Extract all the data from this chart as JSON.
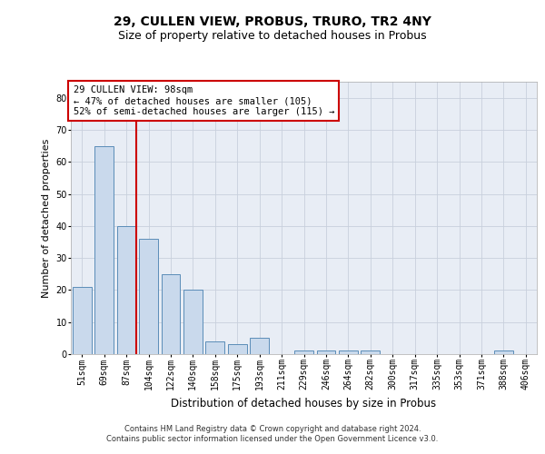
{
  "title": "29, CULLEN VIEW, PROBUS, TRURO, TR2 4NY",
  "subtitle": "Size of property relative to detached houses in Probus",
  "xlabel": "Distribution of detached houses by size in Probus",
  "ylabel": "Number of detached properties",
  "categories": [
    "51sqm",
    "69sqm",
    "87sqm",
    "104sqm",
    "122sqm",
    "140sqm",
    "158sqm",
    "175sqm",
    "193sqm",
    "211sqm",
    "229sqm",
    "246sqm",
    "264sqm",
    "282sqm",
    "300sqm",
    "317sqm",
    "335sqm",
    "353sqm",
    "371sqm",
    "388sqm",
    "406sqm"
  ],
  "values": [
    21,
    65,
    40,
    36,
    25,
    20,
    4,
    3,
    5,
    0,
    1,
    1,
    1,
    1,
    0,
    0,
    0,
    0,
    0,
    1,
    0
  ],
  "bar_color": "#c9d9ec",
  "bar_edge_color": "#5b8db8",
  "vline_color": "#cc0000",
  "vline_x": 2.45,
  "annotation_line1": "29 CULLEN VIEW: 98sqm",
  "annotation_line2": "← 47% of detached houses are smaller (105)",
  "annotation_line3": "52% of semi-detached houses are larger (115) →",
  "annotation_box_color": "#ffffff",
  "annotation_box_edge": "#cc0000",
  "ylim": [
    0,
    85
  ],
  "yticks": [
    0,
    10,
    20,
    30,
    40,
    50,
    60,
    70,
    80
  ],
  "grid_color": "#c8d0dc",
  "bg_color": "#e8edf5",
  "footnote": "Contains HM Land Registry data © Crown copyright and database right 2024.\nContains public sector information licensed under the Open Government Licence v3.0.",
  "title_fontsize": 10,
  "subtitle_fontsize": 9,
  "xlabel_fontsize": 8.5,
  "ylabel_fontsize": 8,
  "tick_fontsize": 7,
  "annotation_fontsize": 7.5,
  "footnote_fontsize": 6
}
